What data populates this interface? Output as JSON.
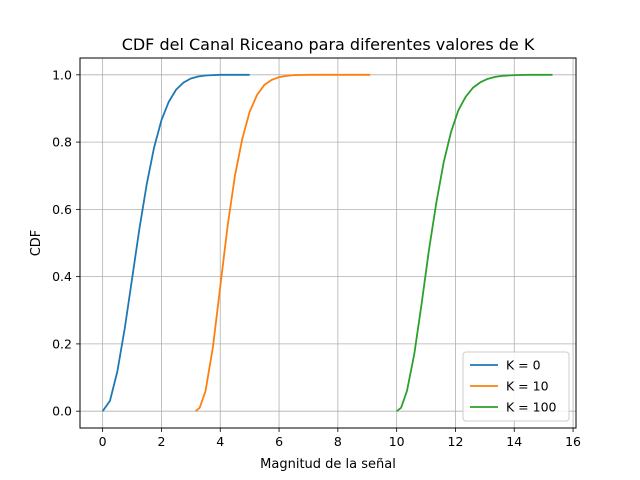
{
  "chart_data": {
    "type": "line",
    "title": "CDF del Canal Riceano para diferentes valores de K",
    "xlabel": "Magnitud de la señal",
    "ylabel": "CDF",
    "xlim": [
      -0.77,
      16.1
    ],
    "ylim": [
      -0.05,
      1.05
    ],
    "xticks": [
      0,
      2,
      4,
      6,
      8,
      10,
      12,
      14,
      16
    ],
    "yticks": [
      0.0,
      0.2,
      0.4,
      0.6,
      0.8,
      1.0
    ],
    "xtick_labels": [
      "0",
      "2",
      "4",
      "6",
      "8",
      "10",
      "12",
      "14",
      "16"
    ],
    "ytick_labels": [
      "0.0",
      "0.2",
      "0.4",
      "0.6",
      "0.8",
      "1.0"
    ],
    "grid": true,
    "legend_position": "lower-right",
    "series": [
      {
        "name": "K = 0",
        "color": "#1f77b4",
        "x": [
          0.0,
          0.25,
          0.5,
          0.75,
          1.0,
          1.25,
          1.5,
          1.75,
          2.0,
          2.25,
          2.5,
          2.75,
          3.0,
          3.25,
          3.5,
          3.75,
          4.0,
          4.5,
          5.0
        ],
        "y": [
          0.0,
          0.031,
          0.118,
          0.245,
          0.393,
          0.542,
          0.675,
          0.784,
          0.865,
          0.92,
          0.956,
          0.977,
          0.989,
          0.995,
          0.998,
          0.999,
          1.0,
          1.0,
          1.0
        ]
      },
      {
        "name": "K = 10",
        "color": "#ff7f0e",
        "x": [
          3.16,
          3.3,
          3.5,
          3.75,
          4.0,
          4.25,
          4.5,
          4.75,
          5.0,
          5.25,
          5.5,
          5.75,
          6.0,
          6.25,
          6.5,
          7.0,
          7.5,
          8.0,
          8.5,
          9.1
        ],
        "y": [
          0.0,
          0.01,
          0.06,
          0.19,
          0.37,
          0.55,
          0.7,
          0.81,
          0.89,
          0.94,
          0.97,
          0.985,
          0.993,
          0.997,
          0.999,
          1.0,
          1.0,
          1.0,
          1.0,
          1.0
        ]
      },
      {
        "name": "K = 100",
        "color": "#2ca02c",
        "x": [
          10.0,
          10.15,
          10.35,
          10.6,
          10.85,
          11.1,
          11.35,
          11.6,
          11.85,
          12.1,
          12.35,
          12.6,
          12.85,
          13.1,
          13.35,
          13.6,
          14.0,
          14.5,
          15.0,
          15.3
        ],
        "y": [
          0.0,
          0.01,
          0.06,
          0.17,
          0.32,
          0.48,
          0.62,
          0.74,
          0.83,
          0.895,
          0.935,
          0.962,
          0.978,
          0.988,
          0.994,
          0.997,
          0.999,
          1.0,
          1.0,
          1.0
        ]
      }
    ]
  }
}
